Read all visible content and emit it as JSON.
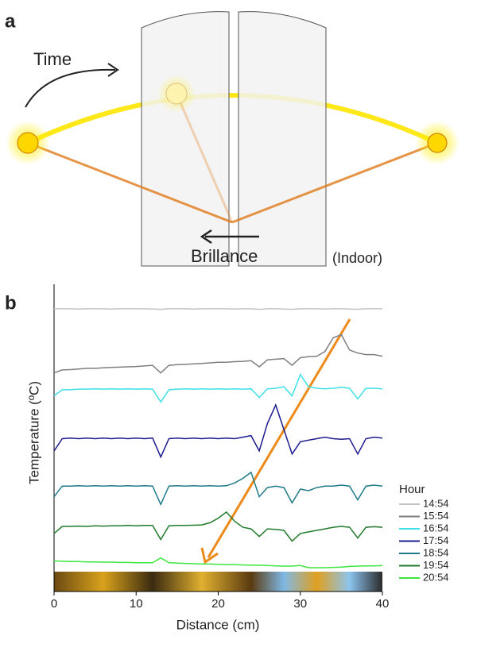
{
  "panel_a": {
    "label": "a",
    "time": "Time",
    "brillance": "Brillance",
    "indoor": "(Indoor)"
  },
  "chart_data": {
    "type": "line",
    "label": "b",
    "xlabel": "Distance (cm)",
    "ylabel": "Temperature (ºC)",
    "xlim": [
      0,
      40
    ],
    "xticks": [
      0,
      10,
      20,
      30,
      40
    ],
    "ylim": [
      0,
      100
    ],
    "legend_title": "Hour",
    "legend": "lower right",
    "x": [
      0,
      1,
      2,
      3,
      4,
      5,
      6,
      7,
      8,
      9,
      10,
      11,
      12,
      13,
      14,
      15,
      16,
      17,
      18,
      19,
      20,
      21,
      22,
      23,
      24,
      25,
      26,
      27,
      28,
      29,
      30,
      31,
      32,
      33,
      34,
      35,
      36,
      37,
      38,
      39,
      40
    ],
    "series": [
      {
        "name": "14:54",
        "color": "#c4c4c4",
        "values": [
          92.5,
          92.5,
          92.5,
          92.4,
          92.5,
          92.5,
          92.5,
          92.4,
          92.5,
          92.5,
          92.5,
          92.5,
          92.4,
          92.3,
          92.5,
          92.5,
          92.5,
          92.4,
          92.5,
          92.5,
          92.5,
          92.5,
          92.4,
          92.5,
          92.5,
          92.3,
          92.5,
          92.5,
          92.4,
          92.3,
          92.5,
          92.5,
          92.5,
          92.4,
          92.5,
          92.5,
          92.4,
          92.3,
          92.5,
          92.5,
          92.5
        ]
      },
      {
        "name": "15:54",
        "color": "#7f7f7f",
        "values": [
          71.5,
          72.5,
          72.6,
          72.8,
          73,
          73,
          73.2,
          73.3,
          73.4,
          73.5,
          73.6,
          73.8,
          74,
          71.5,
          74,
          74.2,
          74.3,
          74.5,
          74.6,
          74.8,
          75,
          75,
          75.2,
          75.3,
          75.5,
          73.5,
          75.8,
          76,
          76.2,
          74,
          76.5,
          76.8,
          77,
          78.5,
          83,
          84,
          79,
          78,
          77.5,
          77.5,
          77
        ]
      },
      {
        "name": "16:54",
        "color": "#3ee0e6",
        "values": [
          64,
          66,
          66,
          66.2,
          66.2,
          66.3,
          66.2,
          66.3,
          66.2,
          66.3,
          66.2,
          66.3,
          66.2,
          62,
          66,
          66.2,
          66.3,
          66.2,
          66.3,
          66.2,
          66.3,
          66.2,
          66.3,
          66.2,
          66.3,
          63.5,
          66.3,
          66.5,
          67,
          64,
          71,
          67,
          66.5,
          66.3,
          66.5,
          66.8,
          66.5,
          63,
          66.5,
          66.5,
          66.3
        ]
      },
      {
        "name": "17:54",
        "color": "#1c1c8e",
        "values": [
          46,
          50,
          50.2,
          50,
          50.2,
          50,
          50.2,
          50,
          50.2,
          50,
          50.2,
          50,
          50.2,
          44,
          50,
          50.2,
          50,
          50.2,
          50,
          50.2,
          50,
          50.2,
          50,
          50.5,
          51,
          46,
          55,
          61,
          53,
          45,
          49,
          49.5,
          50,
          50.5,
          50,
          49.8,
          50,
          45,
          50,
          50.5,
          50.2
        ]
      },
      {
        "name": "18:54",
        "color": "#1f7a8a",
        "values": [
          31,
          34.5,
          34.5,
          34.6,
          34.5,
          34.6,
          34.5,
          34.6,
          34.5,
          34.6,
          34.5,
          34.6,
          34.5,
          28.5,
          34.5,
          34.6,
          34.5,
          34.6,
          34.5,
          34.6,
          34.5,
          34.6,
          35.5,
          37,
          39,
          31,
          34,
          34.5,
          34,
          29,
          33.5,
          33,
          34,
          34.5,
          34.5,
          34.8,
          34.5,
          30,
          34.5,
          34.8,
          34.5
        ]
      },
      {
        "name": "19:54",
        "color": "#227a2c",
        "values": [
          19,
          21.3,
          21.3,
          21.4,
          21.3,
          21.5,
          21.4,
          21.5,
          21.5,
          21.6,
          21.5,
          21.6,
          21.6,
          17,
          21.5,
          21.6,
          21.6,
          21.7,
          21.8,
          22.5,
          24,
          26,
          23,
          21,
          20.5,
          18,
          20.5,
          20.3,
          20,
          16.5,
          19,
          19.5,
          20,
          20.5,
          21,
          21.3,
          21,
          17.5,
          21,
          21.2,
          21
        ]
      },
      {
        "name": "20:54",
        "color": "#3de63d",
        "values": [
          10,
          9.9,
          9.8,
          9.8,
          9.7,
          9.7,
          9.6,
          9.6,
          9.5,
          9.5,
          9.4,
          9.4,
          9.4,
          11,
          9.4,
          9.3,
          9.2,
          9.1,
          9,
          9,
          8.9,
          8.8,
          8.8,
          8.7,
          8.6,
          8.6,
          8.5,
          8.4,
          8.3,
          8.3,
          8.5,
          7.8,
          7.8,
          7.8,
          7.9,
          8,
          8.2,
          8.3,
          8.4,
          8.4,
          8.5
        ]
      }
    ]
  }
}
